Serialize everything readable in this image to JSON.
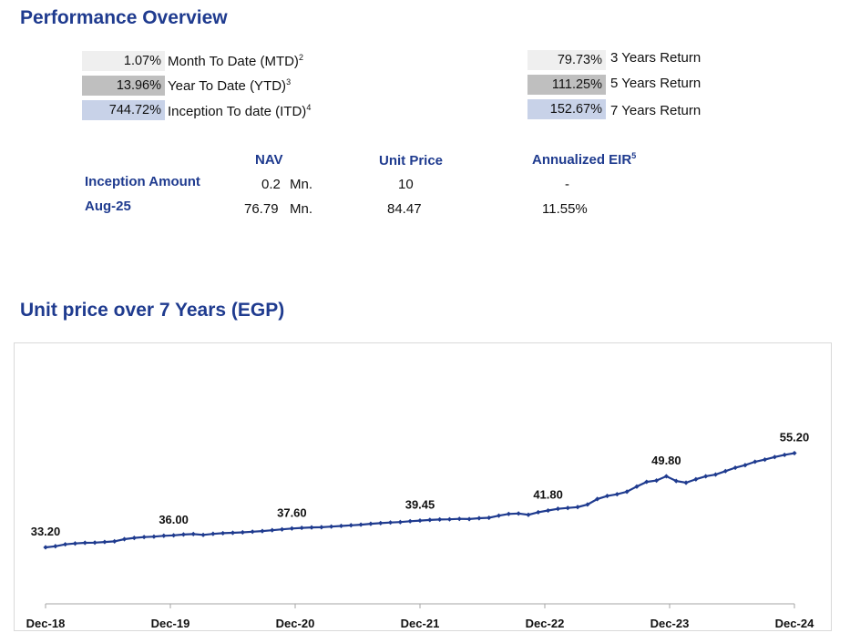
{
  "performance": {
    "title": "Performance Overview",
    "left_returns": [
      {
        "value": "1.07%",
        "label": "Month To Date (MTD)",
        "sup": "2",
        "color": "#efefef"
      },
      {
        "value": "13.96%",
        "label": "Year To Date (YTD)",
        "sup": "3",
        "color": "#bfbfbf"
      },
      {
        "value": "744.72%",
        "label": "Inception To date (ITD)",
        "sup": "4",
        "color": "#c8d2e8"
      }
    ],
    "right_returns": [
      {
        "value": "79.73%",
        "label": "3 Years Return",
        "color": "#efefef"
      },
      {
        "value": "111.25%",
        "label": "5 Years Return",
        "color": "#bfbfbf"
      },
      {
        "value": "152.67%",
        "label": "7 Years Return",
        "color": "#c8d2e8"
      }
    ]
  },
  "fund_table": {
    "headers": {
      "nav": "NAV",
      "unit_price": "Unit Price",
      "eir": "Annualized EIR",
      "eir_sup": "5"
    },
    "rows": [
      {
        "label": "Inception Amount",
        "nav": "0.2",
        "nav_unit": "Mn.",
        "unit_price": "10",
        "eir": "-"
      },
      {
        "label": "Aug-25",
        "nav": "76.79",
        "nav_unit": "Mn.",
        "unit_price": "84.47",
        "eir": "11.55%"
      }
    ]
  },
  "chart_title": "Unit price over 7 Years (EGP)",
  "chart_data": {
    "type": "line",
    "line_color": "#1f3b8f",
    "categories": [
      "Dec-18",
      "Dec-19",
      "Dec-20",
      "Dec-21",
      "Dec-22",
      "Dec-23",
      "Dec-24"
    ],
    "y": [
      33.2,
      33.45,
      33.9,
      34.1,
      34.25,
      34.3,
      34.45,
      34.6,
      35.1,
      35.4,
      35.6,
      35.7,
      35.9,
      36.0,
      36.2,
      36.3,
      36.1,
      36.35,
      36.5,
      36.6,
      36.7,
      36.85,
      37.0,
      37.2,
      37.4,
      37.6,
      37.75,
      37.85,
      37.9,
      38.05,
      38.2,
      38.35,
      38.5,
      38.7,
      38.85,
      39.0,
      39.1,
      39.3,
      39.45,
      39.6,
      39.7,
      39.75,
      39.85,
      39.8,
      40.0,
      40.1,
      40.6,
      41.0,
      41.1,
      40.8,
      41.4,
      41.8,
      42.2,
      42.4,
      42.6,
      43.2,
      44.5,
      45.2,
      45.6,
      46.2,
      47.4,
      48.5,
      48.8,
      49.8,
      48.7,
      48.3,
      49.1,
      49.8,
      50.2,
      51.0,
      51.8,
      52.4,
      53.2,
      53.7,
      54.3,
      54.8,
      55.2
    ]
  }
}
